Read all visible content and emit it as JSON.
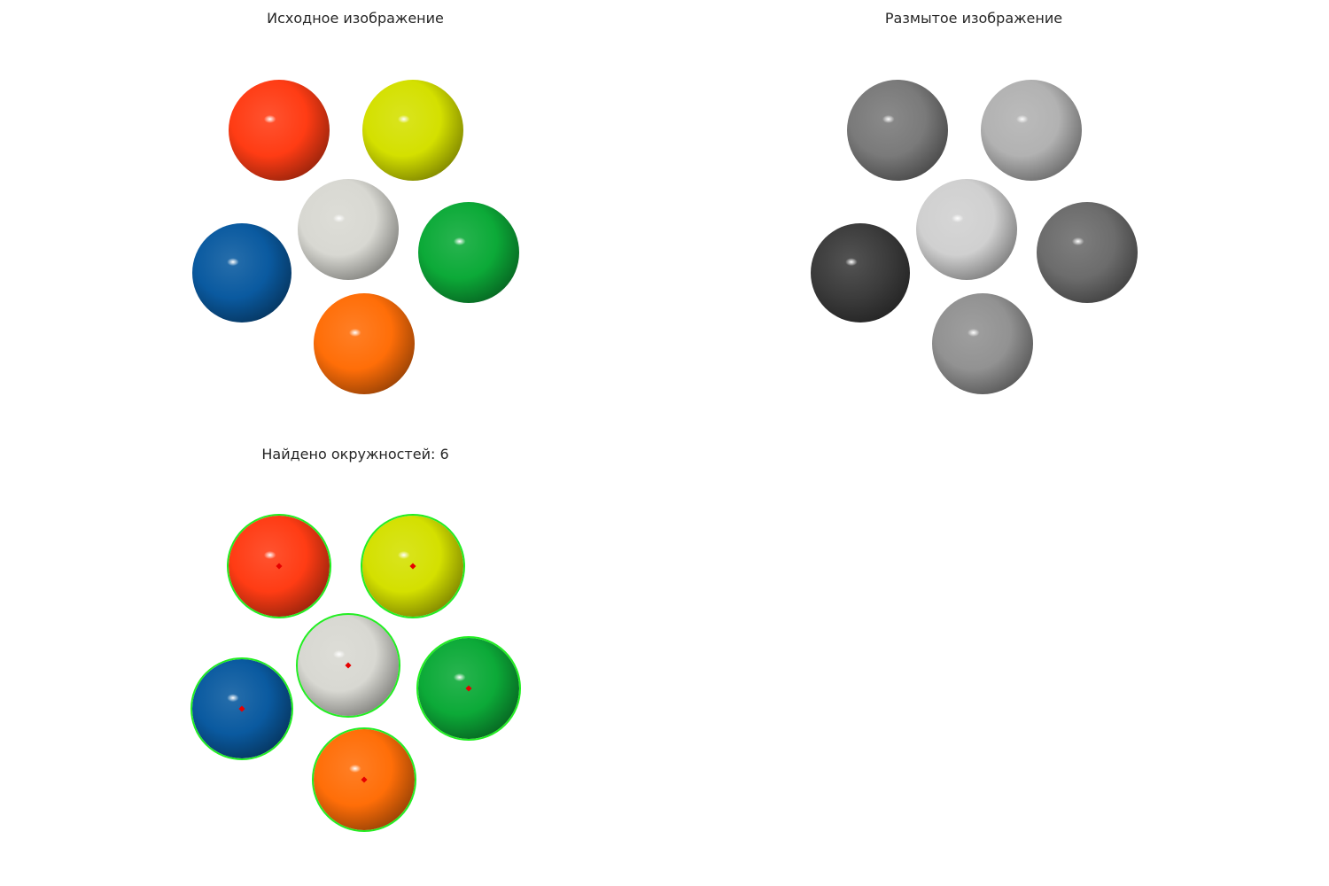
{
  "panels": {
    "original": {
      "title": "Исходное изображение"
    },
    "blurred": {
      "title": "Размытое изображение"
    },
    "detected": {
      "title": "Найдено окружностей: 6",
      "circle_color": "#22ee22",
      "center_color": "#e60000"
    }
  },
  "balls": [
    {
      "id": "red",
      "color": "#ff3c14",
      "gray": "#7a7a7a"
    },
    {
      "id": "yellow",
      "color": "#d4e000",
      "gray": "#b2b2b2"
    },
    {
      "id": "white",
      "color": "#d8d8d2",
      "gray": "#d0d0d0"
    },
    {
      "id": "blue",
      "color": "#0a5aa0",
      "gray": "#3c3c3c"
    },
    {
      "id": "green",
      "color": "#0caa38",
      "gray": "#6c6c6c"
    },
    {
      "id": "orange",
      "color": "#ff6e08",
      "gray": "#929292"
    }
  ]
}
